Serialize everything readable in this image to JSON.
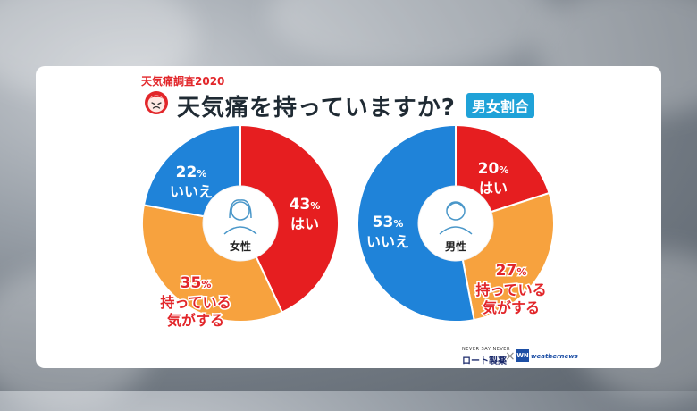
{
  "header": {
    "eyebrow": "天気痛調査2020",
    "title": "天気痛を持っていますか?",
    "tag": "男女割合"
  },
  "colors": {
    "yes": "#e61e20",
    "maybe": "#f7a23e",
    "no": "#1f83d9",
    "tag": "#1fa2d8"
  },
  "chart_data": [
    {
      "type": "pie",
      "center_label": "女性",
      "slices": [
        {
          "label": "はい",
          "value": 43,
          "color": "#e61e20",
          "text_color": "#ffffff"
        },
        {
          "label": "持っている\n気がする",
          "value": 35,
          "color": "#f7a23e",
          "text_color": "#e2262a"
        },
        {
          "label": "いいえ",
          "value": 22,
          "color": "#1f83d9",
          "text_color": "#ffffff"
        }
      ]
    },
    {
      "type": "pie",
      "center_label": "男性",
      "slices": [
        {
          "label": "はい",
          "value": 20,
          "color": "#e61e20",
          "text_color": "#ffffff"
        },
        {
          "label": "持っている\n気がする",
          "value": 27,
          "color": "#f7a23e",
          "text_color": "#e2262a"
        },
        {
          "label": "いいえ",
          "value": 53,
          "color": "#1f83d9",
          "text_color": "#ffffff"
        }
      ]
    }
  ],
  "footer": {
    "rohto_tagline": "NEVER SAY NEVER",
    "rohto": "ロート製薬",
    "cross": "×",
    "wn_mark": "WN",
    "wn": "weathernews"
  }
}
